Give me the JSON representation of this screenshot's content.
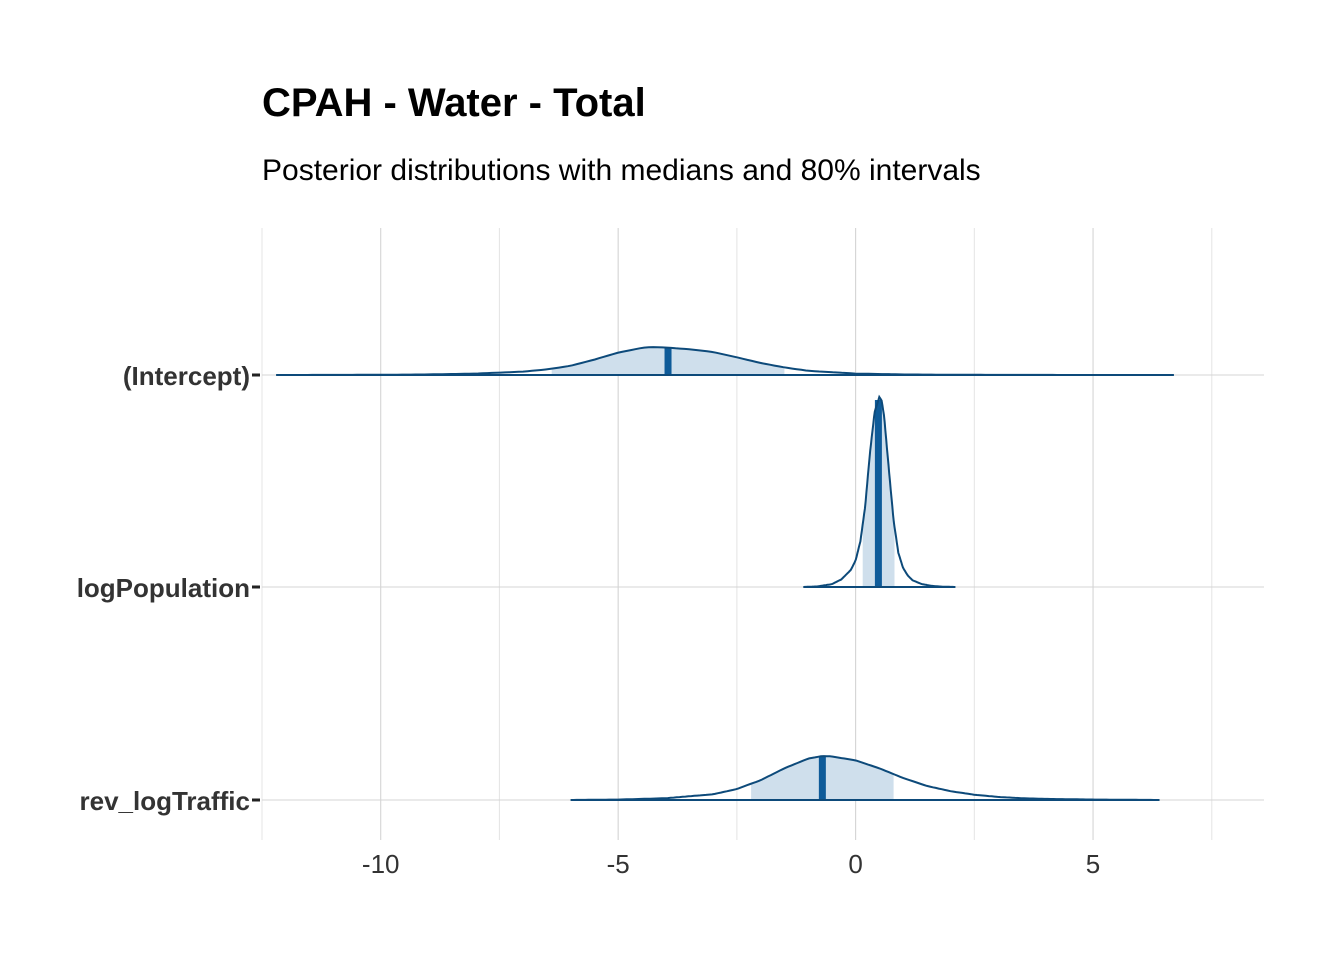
{
  "chart_data": {
    "type": "area",
    "title": "CPAH - Water - Total",
    "subtitle": "Posterior distributions with medians and 80% intervals",
    "xlabel": "",
    "ylabel": "",
    "xlim": [
      -12.5,
      8.6
    ],
    "x_ticks": [
      -10,
      -5,
      0,
      5
    ],
    "x_minor_ticks": [
      -12.5,
      -7.5,
      -2.5,
      2.5,
      7.5
    ],
    "grid": true,
    "legend": "none",
    "colors": {
      "outline": "#0d4a7a",
      "interval_fill": "#cfdfec",
      "median": "#0e5b99"
    },
    "series": [
      {
        "name": "(Intercept)",
        "range": [
          -12.2,
          6.7
        ],
        "median": -3.95,
        "interval_80": [
          -6.4,
          -1.5
        ],
        "density": {
          "x": [
            -12.2,
            -11,
            -10,
            -9,
            -8,
            -7,
            -6.5,
            -6,
            -5.5,
            -5,
            -4.5,
            -4.3,
            -4,
            -3.5,
            -3,
            -2.5,
            -2,
            -1.5,
            -1,
            0,
            1,
            2,
            3,
            4,
            5,
            6,
            6.7
          ],
          "y": [
            0,
            0.003,
            0.008,
            0.02,
            0.05,
            0.12,
            0.2,
            0.33,
            0.55,
            0.8,
            0.97,
            1.0,
            0.98,
            0.92,
            0.82,
            0.63,
            0.43,
            0.27,
            0.15,
            0.05,
            0.02,
            0.008,
            0.004,
            0.002,
            0.001,
            0.0005,
            0
          ]
        }
      },
      {
        "name": "logPopulation",
        "range": [
          -1.1,
          2.1
        ],
        "median": 0.48,
        "interval_80": [
          0.15,
          0.82
        ],
        "density": {
          "x": [
            -1.1,
            -0.8,
            -0.5,
            -0.3,
            -0.1,
            0.0,
            0.1,
            0.2,
            0.3,
            0.4,
            0.5,
            0.55,
            0.6,
            0.7,
            0.8,
            0.9,
            1.0,
            1.1,
            1.2,
            1.4,
            1.6,
            1.8,
            2.1
          ],
          "y": [
            0,
            0.003,
            0.015,
            0.04,
            0.09,
            0.14,
            0.24,
            0.42,
            0.7,
            0.92,
            1.0,
            0.98,
            0.9,
            0.62,
            0.35,
            0.18,
            0.1,
            0.06,
            0.035,
            0.015,
            0.006,
            0.002,
            0
          ]
        }
      },
      {
        "name": "rev_logTraffic",
        "range": [
          -6,
          6.4
        ],
        "median": -0.7,
        "interval_80": [
          -2.2,
          0.8
        ],
        "density": {
          "x": [
            -6,
            -5,
            -4,
            -3,
            -2.5,
            -2,
            -1.5,
            -1,
            -0.7,
            -0.5,
            0,
            0.5,
            1,
            1.5,
            2,
            2.5,
            3,
            3.5,
            4,
            5,
            6,
            6.4
          ],
          "y": [
            0,
            0.01,
            0.04,
            0.13,
            0.25,
            0.45,
            0.72,
            0.94,
            1.0,
            0.99,
            0.9,
            0.72,
            0.5,
            0.32,
            0.2,
            0.12,
            0.07,
            0.04,
            0.025,
            0.01,
            0.003,
            0
          ]
        }
      }
    ]
  }
}
